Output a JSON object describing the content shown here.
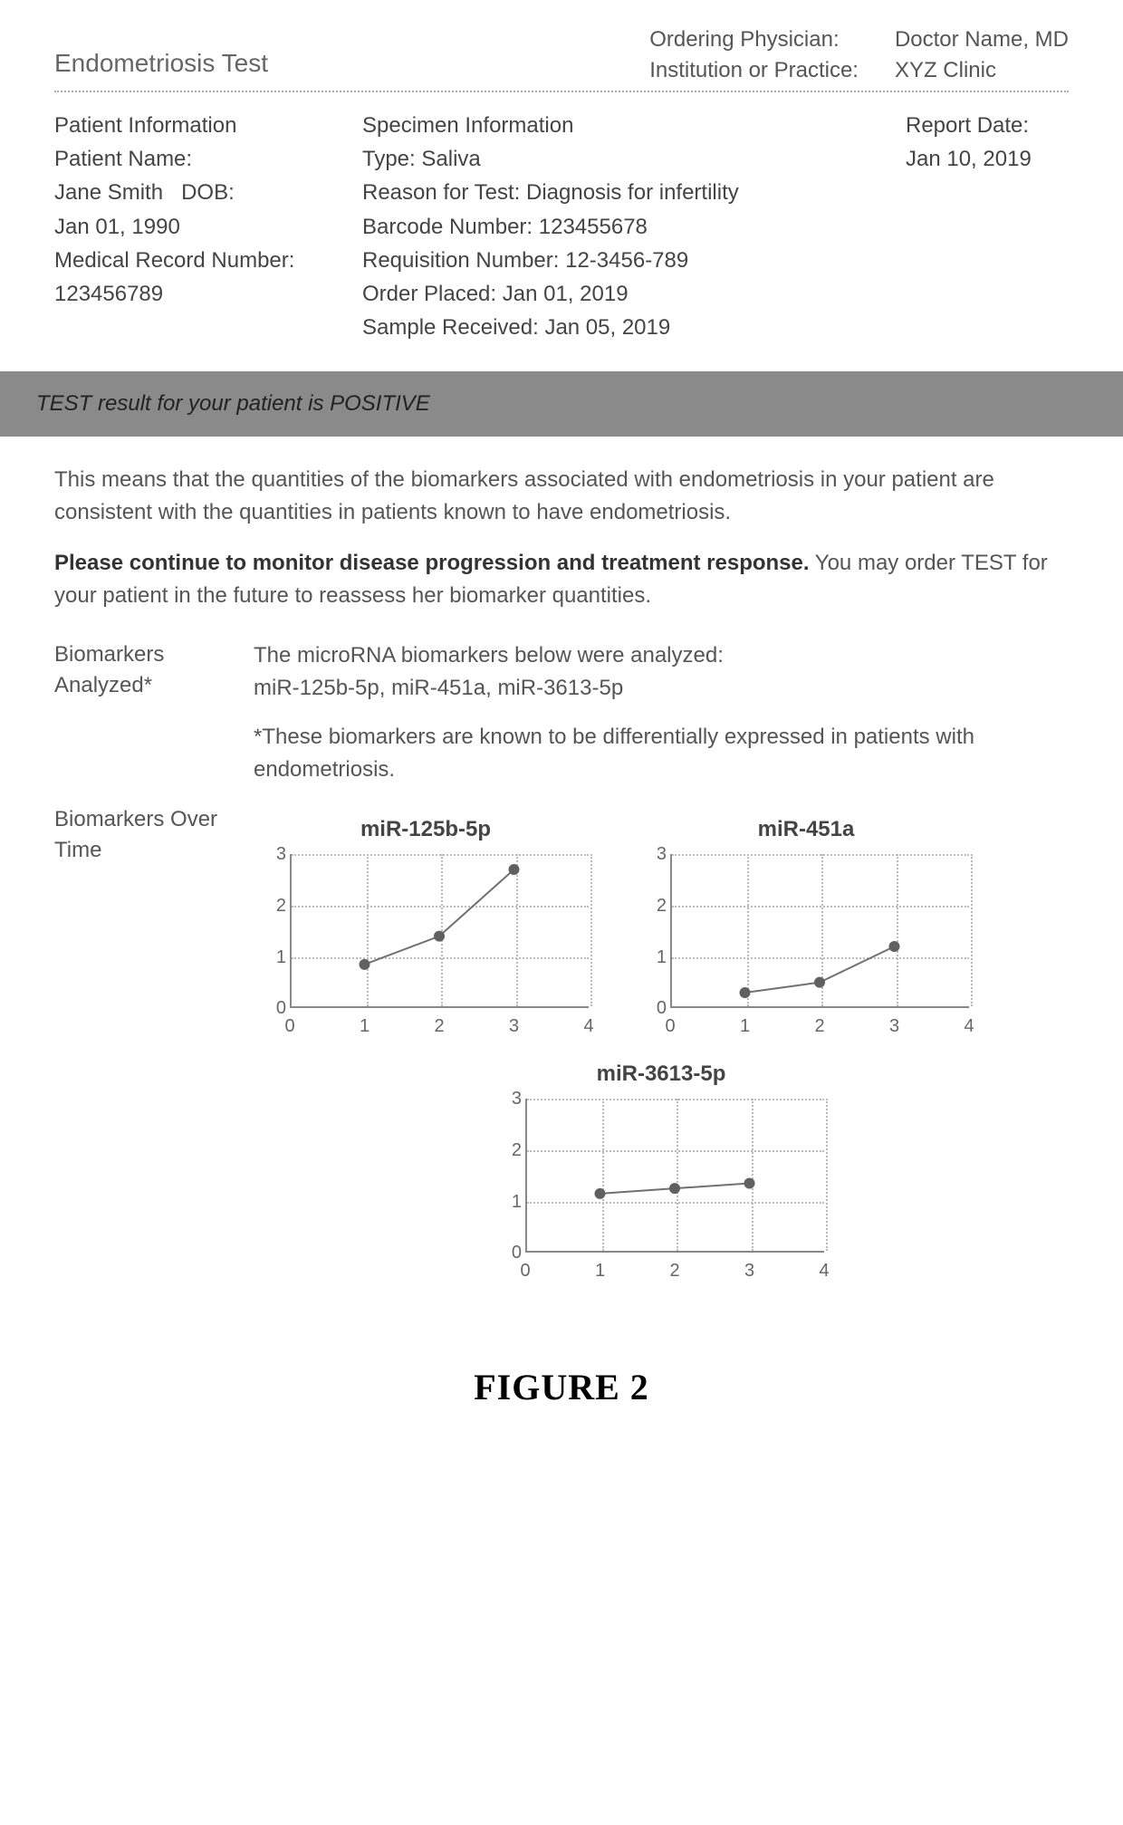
{
  "header": {
    "test_title": "Endometriosis Test",
    "physician_label": "Ordering Physician:",
    "physician_value": "Doctor Name, MD",
    "institution_label": "Institution or Practice:",
    "institution_value": "XYZ Clinic"
  },
  "patient": {
    "section_label": "Patient Information",
    "name_label": "Patient Name:",
    "name_value": "Jane Smith",
    "dob_label": "DOB:",
    "dob_value": "Jan 01, 1990",
    "mrn_label": "Medical Record Number:",
    "mrn_value": "123456789"
  },
  "specimen": {
    "section_label": "Specimen Information",
    "type_label": "Type:",
    "type_value": "Saliva",
    "reason_label": "Reason for Test:",
    "reason_value": "Diagnosis for infertility",
    "barcode_label": "Barcode Number:",
    "barcode_value": "123455678",
    "req_label": "Requisition  Number:",
    "req_value": "12-3456-789",
    "order_placed_label": "Order Placed:",
    "order_placed_value": "Jan 01, 2019",
    "sample_received_label": "Sample Received:",
    "sample_received_value": "Jan 05, 2019"
  },
  "report": {
    "date_label": "Report Date:",
    "date_value": "Jan 10, 2019"
  },
  "result_bar": "TEST result for your patient is POSITIVE",
  "body": {
    "p1": "This means that the quantities of the biomarkers associated with endometriosis in your patient are consistent with the quantities in patients known to have endometriosis.",
    "p2_bold": "Please continue to monitor disease progression and treatment response.",
    "p2_rest": " You may order TEST for your patient in the future to reassess her biomarker quantities."
  },
  "biomarkers": {
    "analyzed_label": "Biomarkers Analyzed*",
    "analyzed_text1": "The microRNA biomarkers below were analyzed:",
    "analyzed_text2": "miR-125b-5p, miR-451a, miR-3613-5p",
    "footnote": "*These biomarkers are known to be differentially  expressed in patients with endometriosis.",
    "over_time_label": "Biomarkers Over Time"
  },
  "charts": {
    "axis": {
      "x_ticks": [
        0,
        1,
        2,
        3,
        4
      ],
      "y_ticks": [
        0,
        1,
        2,
        3
      ],
      "xlim": [
        0,
        4
      ],
      "ylim": [
        0,
        3
      ],
      "grid_color": "#bbbbbb",
      "axis_color": "#888888",
      "line_color": "#707070",
      "marker_color": "#606060",
      "marker_radius": 6,
      "line_width": 2,
      "title_fontsize": 24,
      "tick_fontsize": 20,
      "background_color": "#ffffff"
    },
    "series": [
      {
        "title": "miR-125b-5p",
        "x": [
          1,
          2,
          3
        ],
        "y": [
          0.85,
          1.4,
          2.7
        ]
      },
      {
        "title": "miR-451a",
        "x": [
          1,
          2,
          3
        ],
        "y": [
          0.3,
          0.5,
          1.2
        ]
      },
      {
        "title": "miR-3613-5p",
        "x": [
          1,
          2,
          3
        ],
        "y": [
          1.15,
          1.25,
          1.35
        ]
      }
    ]
  },
  "figure_caption": "FIGURE 2"
}
